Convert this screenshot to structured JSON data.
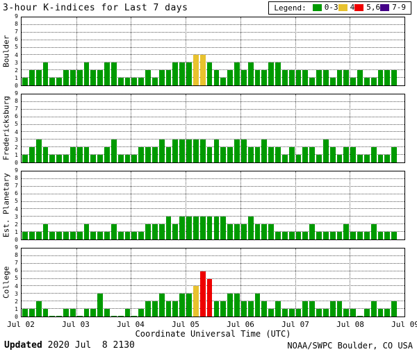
{
  "title": "3-hour K-indices for Last 7 days",
  "legend": {
    "label": "Legend:",
    "items": [
      {
        "label": "0-3",
        "color": "#009a00"
      },
      {
        "label": "4",
        "color": "#e8c22e"
      },
      {
        "label": "5,6",
        "color": "#ee0000"
      },
      {
        "label": "7-9",
        "color": "#440088"
      }
    ]
  },
  "xlabel": "Coordinate Universal Time (UTC)",
  "footer": {
    "updated_label": "Updated",
    "updated_value": " 2020 Jul  8 2130",
    "credit": "NOAA/SWPC Boulder, CO USA"
  },
  "chart_data": {
    "type": "bar",
    "title": "3-hour K-indices for Last 7 days",
    "xlabel": "Coordinate Universal Time (UTC)",
    "ylim": [
      0,
      9
    ],
    "y_ticks": [
      0,
      1,
      2,
      3,
      4,
      5,
      6,
      7,
      8,
      9
    ],
    "x_tick_labels": [
      "Jul 02",
      "Jul 03",
      "Jul 04",
      "Jul 05",
      "Jul 06",
      "Jul 07",
      "Jul 08",
      "Jul 09"
    ],
    "bars_per_day": 8,
    "days": 7,
    "slots_total": 56,
    "grid": "dotted",
    "legend_position": "top-right",
    "color_rules": [
      {
        "range": "0-3",
        "color": "#009a00"
      },
      {
        "range": "4",
        "color": "#e8c22e"
      },
      {
        "range": "5,6",
        "color": "#ee0000"
      },
      {
        "range": "7-9",
        "color": "#440088"
      }
    ],
    "stations": [
      {
        "name": "Boulder",
        "values": [
          1,
          2,
          2,
          3,
          1,
          1,
          2,
          2,
          2,
          3,
          2,
          2,
          3,
          3,
          1,
          1,
          1,
          1,
          2,
          1,
          2,
          2,
          3,
          3,
          3,
          4,
          4,
          3,
          2,
          1,
          2,
          3,
          2,
          3,
          2,
          2,
          3,
          3,
          2,
          2,
          2,
          2,
          1,
          2,
          2,
          1,
          2,
          2,
          1,
          2,
          1,
          1,
          2,
          2,
          2
        ]
      },
      {
        "name": "Fredericksburg",
        "values": [
          1,
          2,
          3,
          2,
          1,
          1,
          1,
          2,
          2,
          2,
          1,
          1,
          2,
          3,
          1,
          1,
          1,
          2,
          2,
          2,
          3,
          2,
          3,
          3,
          3,
          3,
          3,
          2,
          3,
          2,
          2,
          3,
          3,
          2,
          2,
          3,
          2,
          2,
          1,
          2,
          1,
          2,
          2,
          1,
          3,
          2,
          1,
          2,
          2,
          1,
          1,
          2,
          1,
          1,
          2
        ]
      },
      {
        "name": "Est. Planetary",
        "values": [
          1,
          1,
          1,
          2,
          1,
          1,
          1,
          1,
          1,
          2,
          1,
          1,
          1,
          2,
          1,
          1,
          1,
          1,
          2,
          2,
          2,
          3,
          2,
          3,
          3,
          3,
          3,
          3,
          3,
          3,
          2,
          2,
          2,
          3,
          2,
          2,
          2,
          1,
          1,
          1,
          1,
          1,
          2,
          1,
          1,
          1,
          1,
          2,
          1,
          1,
          1,
          2,
          1,
          1,
          1
        ]
      },
      {
        "name": "College",
        "values": [
          1,
          1,
          2,
          1,
          0,
          0,
          1,
          1,
          0,
          1,
          1,
          3,
          1,
          0,
          0,
          1,
          0,
          1,
          2,
          2,
          3,
          2,
          2,
          3,
          3,
          4,
          6,
          5,
          2,
          2,
          3,
          3,
          2,
          2,
          3,
          2,
          1,
          2,
          1,
          1,
          1,
          2,
          2,
          1,
          1,
          2,
          2,
          1,
          1,
          0,
          1,
          2,
          1,
          1,
          2
        ]
      }
    ]
  }
}
